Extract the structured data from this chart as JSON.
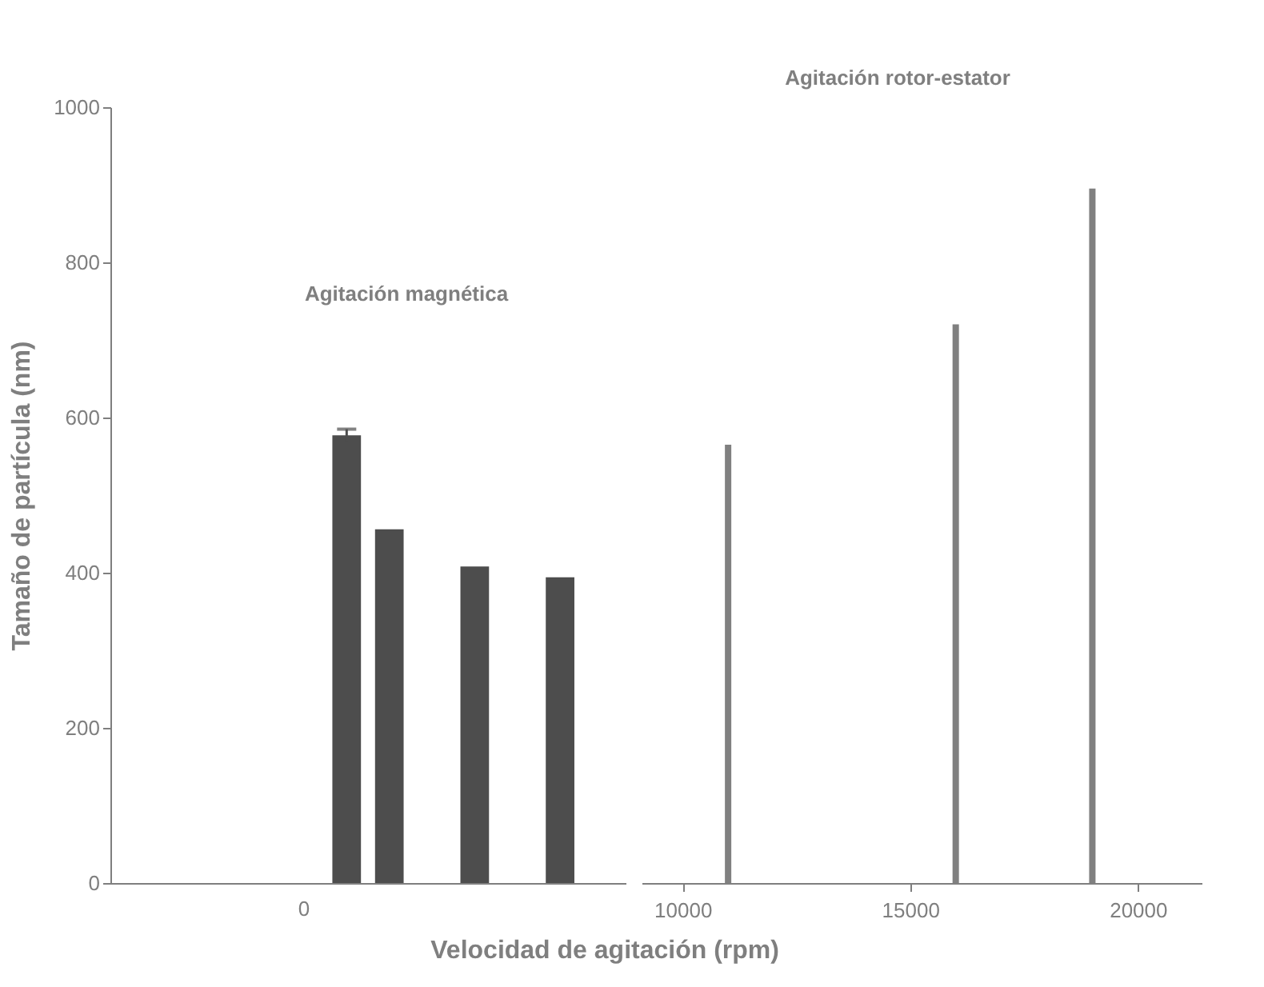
{
  "chart_data": [
    {
      "type": "bar",
      "ylabel": "Tamaño de partícula (nm)",
      "xlabel": "Velocidad de agitación (rpm)",
      "annotations": [
        "Agitación magnética"
      ],
      "categories": [
        null,
        null,
        null,
        null,
        "0",
        null,
        null,
        null,
        null,
        null,
        null,
        null
      ],
      "values": [
        null,
        null,
        null,
        null,
        null,
        577,
        456,
        null,
        408,
        null,
        394,
        null
      ],
      "errors": [
        null,
        null,
        null,
        null,
        null,
        8,
        null,
        null,
        null,
        null,
        null,
        null
      ],
      "color": "#4d4d4d",
      "ylim": [
        0,
        1000
      ],
      "yticks": [
        0,
        200,
        400,
        600,
        800,
        1000
      ],
      "grid": false
    },
    {
      "type": "bar",
      "annotations": [
        "Agitación rotor-estator"
      ],
      "x": [
        11000,
        16000,
        19000
      ],
      "values": [
        565,
        720,
        895
      ],
      "color": "#808080",
      "xlim": [
        9100,
        21400
      ],
      "xticks": [
        10000,
        15000,
        20000
      ],
      "ylim": [
        0,
        1000
      ],
      "tick_labels": "x",
      "grid": false
    }
  ]
}
